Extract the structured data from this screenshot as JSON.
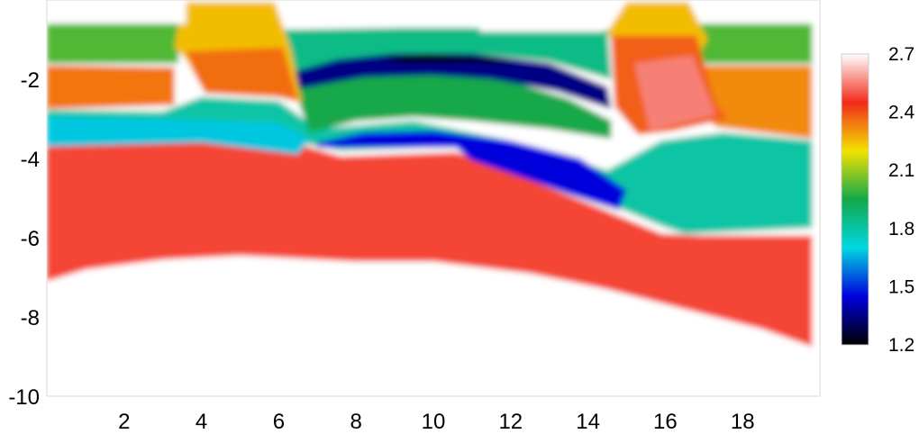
{
  "chart_data": {
    "type": "heatmap",
    "title": "",
    "xlabel": "",
    "ylabel": "",
    "xlim": [
      0,
      20
    ],
    "ylim": [
      -10,
      0
    ],
    "x_ticks": [
      2,
      4,
      6,
      8,
      10,
      12,
      14,
      16,
      18
    ],
    "y_ticks": [
      -2,
      -4,
      -6,
      -8,
      -10
    ],
    "grid": true,
    "colorbar": {
      "min": 1.2,
      "max": 2.7,
      "ticks": [
        1.2,
        1.5,
        1.8,
        2.1,
        2.4,
        2.7
      ],
      "colors": [
        "#000000",
        "#0000dd",
        "#00d8e0",
        "#12a84a",
        "#f2e200",
        "#f22b1b",
        "#ffffff"
      ],
      "placement": "right"
    },
    "regions": [
      {
        "value": 2.7,
        "poly": [
          [
            0,
            -10
          ],
          [
            20,
            -10
          ],
          [
            20,
            0
          ],
          [
            0,
            0
          ]
        ]
      },
      {
        "value": 2.48,
        "poly": [
          [
            0,
            -3.7
          ],
          [
            3,
            -3.55
          ],
          [
            6,
            -3.5
          ],
          [
            7.6,
            -3.95
          ],
          [
            10.6,
            -3.85
          ],
          [
            12,
            -4.35
          ],
          [
            14.3,
            -5.25
          ],
          [
            15.9,
            -5.9
          ],
          [
            17,
            -5.95
          ],
          [
            19.8,
            -5.95
          ],
          [
            19.8,
            -8.75
          ],
          [
            18.5,
            -8.3
          ],
          [
            16.5,
            -7.8
          ],
          [
            14.5,
            -7.3
          ],
          [
            12.5,
            -6.9
          ],
          [
            10,
            -6.6
          ],
          [
            8,
            -6.6
          ],
          [
            5,
            -6.45
          ],
          [
            3,
            -6.55
          ],
          [
            1,
            -6.8
          ],
          [
            0,
            -7.1
          ]
        ]
      },
      {
        "value": 1.8,
        "poly": [
          [
            0,
            -2.78
          ],
          [
            3,
            -2.82
          ],
          [
            4,
            -2.45
          ],
          [
            6,
            -2.55
          ],
          [
            7,
            -3.25
          ],
          [
            9.5,
            -3.05
          ],
          [
            12,
            -3.55
          ],
          [
            14.5,
            -4.3
          ],
          [
            15.9,
            -3.55
          ],
          [
            17.5,
            -3.35
          ],
          [
            19.8,
            -3.55
          ],
          [
            19.8,
            -5.75
          ],
          [
            16.5,
            -5.9
          ],
          [
            15.9,
            -5.7
          ],
          [
            14.3,
            -5.05
          ],
          [
            12,
            -4.2
          ],
          [
            10.6,
            -3.7
          ],
          [
            7.6,
            -3.8
          ],
          [
            6,
            -3.5
          ],
          [
            3,
            -3.5
          ],
          [
            0,
            -3.65
          ]
        ]
      },
      {
        "value": 1.68,
        "poly": [
          [
            0,
            -2.95
          ],
          [
            3,
            -3.0
          ],
          [
            6,
            -3.1
          ],
          [
            6.8,
            -3.5
          ],
          [
            6.5,
            -3.9
          ],
          [
            4,
            -3.6
          ],
          [
            0,
            -3.7
          ]
        ]
      },
      {
        "value": 1.45,
        "poly": [
          [
            7.0,
            -3.6
          ],
          [
            8.2,
            -3.35
          ],
          [
            10,
            -3.3
          ],
          [
            12,
            -3.55
          ],
          [
            13.8,
            -4.0
          ],
          [
            15,
            -4.8
          ],
          [
            14.8,
            -5.3
          ],
          [
            13.5,
            -4.9
          ],
          [
            12.5,
            -4.55
          ],
          [
            11.0,
            -4.05
          ],
          [
            10.8,
            -3.9
          ],
          [
            10.6,
            -3.72
          ],
          [
            8.5,
            -3.72
          ],
          [
            7.0,
            -3.72
          ]
        ]
      },
      {
        "value": 1.95,
        "poly": [
          [
            6.4,
            -2.25
          ],
          [
            8,
            -1.95
          ],
          [
            10,
            -1.85
          ],
          [
            12,
            -2.05
          ],
          [
            13.5,
            -2.5
          ],
          [
            14.6,
            -3.05
          ],
          [
            14.6,
            -3.5
          ],
          [
            13,
            -3.25
          ],
          [
            11,
            -3.05
          ],
          [
            9.5,
            -2.95
          ],
          [
            8,
            -3.05
          ],
          [
            6.8,
            -3.35
          ]
        ]
      },
      {
        "value": 1.85,
        "poly": [
          [
            6.0,
            -0.75
          ],
          [
            9,
            -0.7
          ],
          [
            11,
            -0.7
          ],
          [
            13,
            -0.75
          ],
          [
            14.5,
            -0.75
          ],
          [
            14.6,
            -2.0
          ],
          [
            13,
            -1.55
          ],
          [
            11,
            -1.35
          ],
          [
            9,
            -1.35
          ],
          [
            7.2,
            -1.6
          ],
          [
            6.3,
            -1.9
          ]
        ]
      },
      {
        "value": 1.35,
        "poly": [
          [
            6.4,
            -1.8
          ],
          [
            7.5,
            -1.5
          ],
          [
            9,
            -1.35
          ],
          [
            11,
            -1.35
          ],
          [
            13,
            -1.6
          ],
          [
            14.5,
            -2.2
          ],
          [
            14.6,
            -2.75
          ],
          [
            13.2,
            -2.3
          ],
          [
            11.5,
            -2.0
          ],
          [
            10,
            -1.9
          ],
          [
            8.2,
            -1.95
          ],
          [
            6.5,
            -2.25
          ]
        ]
      },
      {
        "value": 1.25,
        "poly": [
          [
            8.6,
            -1.45
          ],
          [
            9.8,
            -1.35
          ],
          [
            11.5,
            -1.45
          ],
          [
            12.2,
            -1.6
          ],
          [
            10.5,
            -1.6
          ],
          [
            9.2,
            -1.6
          ]
        ]
      },
      {
        "value": 2.02,
        "poly": [
          [
            0,
            -0.6
          ],
          [
            3.4,
            -0.6
          ],
          [
            3.4,
            -1.6
          ],
          [
            0,
            -1.6
          ]
        ]
      },
      {
        "value": 2.02,
        "poly": [
          [
            16.8,
            -0.6
          ],
          [
            19.8,
            -0.6
          ],
          [
            19.8,
            -1.6
          ],
          [
            16.8,
            -1.6
          ]
        ]
      },
      {
        "value": 2.35,
        "poly": [
          [
            0,
            -1.65
          ],
          [
            3.3,
            -1.7
          ],
          [
            3.3,
            -2.65
          ],
          [
            0,
            -2.75
          ]
        ]
      },
      {
        "value": 2.32,
        "poly": [
          [
            16.8,
            -1.65
          ],
          [
            19.8,
            -1.65
          ],
          [
            19.8,
            -3.5
          ],
          [
            17.3,
            -3.2
          ],
          [
            16.8,
            -2.6
          ]
        ]
      },
      {
        "value": 2.25,
        "poly": [
          [
            3.5,
            -0.05
          ],
          [
            5.9,
            -0.05
          ],
          [
            6.3,
            -1.2
          ],
          [
            6.6,
            -2.6
          ],
          [
            6.0,
            -2.45
          ],
          [
            4.1,
            -2.35
          ],
          [
            3.6,
            -1.5
          ],
          [
            3.3,
            -1.2
          ]
        ]
      },
      {
        "value": 2.36,
        "poly": [
          [
            3.6,
            -1.3
          ],
          [
            6.1,
            -1.2
          ],
          [
            6.5,
            -2.55
          ],
          [
            6.0,
            -2.45
          ],
          [
            4.1,
            -2.35
          ],
          [
            3.9,
            -2.0
          ]
        ]
      },
      {
        "value": 2.25,
        "poly": [
          [
            15.0,
            -0.05
          ],
          [
            16.6,
            -0.05
          ],
          [
            17.1,
            -1.0
          ],
          [
            16.8,
            -1.45
          ],
          [
            15.2,
            -1.4
          ],
          [
            14.7,
            -1.2
          ],
          [
            14.5,
            -0.8
          ]
        ]
      },
      {
        "value": 2.38,
        "poly": [
          [
            14.6,
            -0.9
          ],
          [
            16.8,
            -0.9
          ],
          [
            17.3,
            -2.6
          ],
          [
            17.6,
            -3.0
          ],
          [
            16.2,
            -3.3
          ],
          [
            15.3,
            -3.4
          ],
          [
            14.7,
            -2.7
          ]
        ]
      },
      {
        "value": 2.55,
        "poly": [
          [
            15.2,
            -1.6
          ],
          [
            16.7,
            -1.4
          ],
          [
            17.3,
            -2.9
          ],
          [
            15.6,
            -3.3
          ]
        ]
      },
      {
        "value": 2.7,
        "poly": [
          [
            3.4,
            0
          ],
          [
            3.6,
            -0.05
          ],
          [
            3.6,
            -0.6
          ],
          [
            3.4,
            -0.6
          ]
        ]
      },
      {
        "value": 2.7,
        "poly": [
          [
            5.9,
            0
          ],
          [
            6.3,
            -0.7
          ],
          [
            9.0,
            -0.7
          ],
          [
            9.0,
            0
          ]
        ]
      },
      {
        "value": 2.7,
        "poly": [
          [
            11.2,
            0
          ],
          [
            11.2,
            -0.8
          ],
          [
            14.4,
            -0.8
          ],
          [
            14.8,
            0
          ]
        ]
      },
      {
        "value": 2.7,
        "poly": [
          [
            0,
            0
          ],
          [
            3.5,
            0
          ],
          [
            3.5,
            -0.55
          ],
          [
            0,
            -0.55
          ]
        ]
      },
      {
        "value": 2.7,
        "poly": [
          [
            16.7,
            0
          ],
          [
            20,
            0
          ],
          [
            20,
            -0.55
          ],
          [
            17.1,
            -0.55
          ]
        ]
      }
    ]
  }
}
